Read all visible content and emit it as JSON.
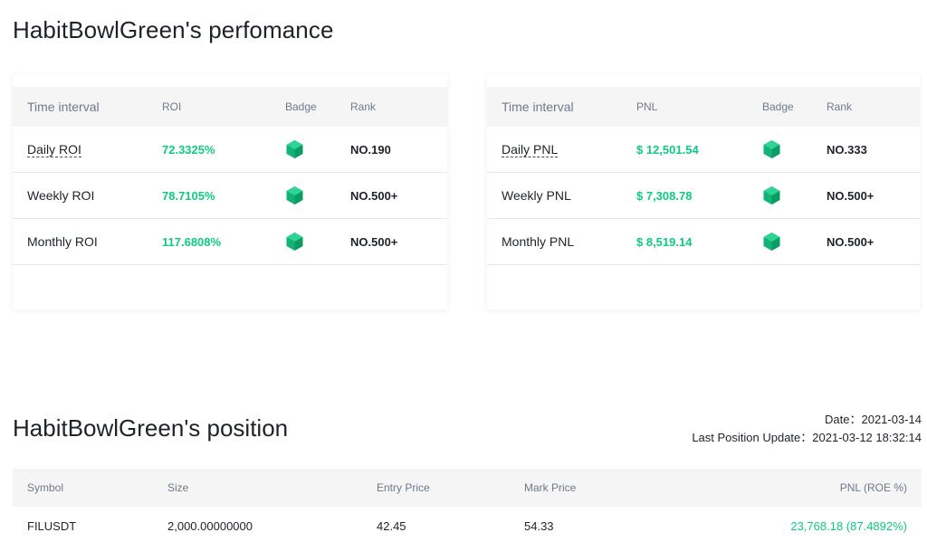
{
  "performance": {
    "title": "HabitBowlGreen's perfomance",
    "roi_table": {
      "headers": {
        "interval": "Time interval",
        "value": "ROI",
        "badge": "Badge",
        "rank": "Rank"
      },
      "rows": [
        {
          "interval": "Daily ROI",
          "value": "72.3325%",
          "rank": "NO.190"
        },
        {
          "interval": "Weekly ROI",
          "value": "78.7105%",
          "rank": "NO.500+"
        },
        {
          "interval": "Monthly ROI",
          "value": "117.6808%",
          "rank": "NO.500+"
        }
      ]
    },
    "pnl_table": {
      "headers": {
        "interval": "Time interval",
        "value": "PNL",
        "badge": "Badge",
        "rank": "Rank"
      },
      "rows": [
        {
          "interval": "Daily PNL",
          "value": "$ 12,501.54",
          "rank": "NO.333"
        },
        {
          "interval": "Weekly PNL",
          "value": "$ 7,308.78",
          "rank": "NO.500+"
        },
        {
          "interval": "Monthly PNL",
          "value": "$ 8,519.14",
          "rank": "NO.500+"
        }
      ]
    },
    "badge_icon": "green-hexagon-icon"
  },
  "position": {
    "title": "HabitBowlGreen's position",
    "date_label": "Date：2021-03-14",
    "update_label": "Last Position Update：2021-03-12 18:32:14",
    "headers": {
      "symbol": "Symbol",
      "size": "Size",
      "entry": "Entry Price",
      "mark": "Mark Price",
      "pnl": "PNL (ROE %)"
    },
    "rows": [
      {
        "symbol": "FILUSDT",
        "size": "2,000.00000000",
        "entry": "42.45",
        "mark": "54.33",
        "pnl": "23,768.18 (87.4892%)"
      }
    ]
  },
  "colors": {
    "positive": "#0ecb81",
    "text": "#1e2329",
    "muted": "#707a8a",
    "header_bg": "#f5f5f5"
  }
}
